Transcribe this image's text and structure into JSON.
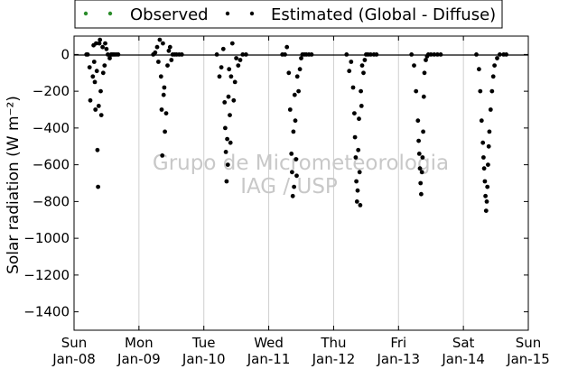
{
  "chart_data": {
    "type": "scatter",
    "ylabel": "Solar radiation (W m⁻²)",
    "ylim": [
      -1500,
      100
    ],
    "yticks": [
      0,
      -200,
      -400,
      -600,
      -800,
      -1000,
      -1200,
      -1400
    ],
    "ytick_labels": [
      "0",
      "−200",
      "−400",
      "−600",
      "−800",
      "−1000",
      "−1200",
      "−1400"
    ],
    "xlim": [
      0,
      7
    ],
    "xticks": [
      0,
      1,
      2,
      3,
      4,
      5,
      6,
      7
    ],
    "xtick_labels": [
      [
        "Sun",
        "Jan-08"
      ],
      [
        "Mon",
        "Jan-09"
      ],
      [
        "Tue",
        "Jan-10"
      ],
      [
        "Wed",
        "Jan-11"
      ],
      [
        "Thu",
        "Jan-12"
      ],
      [
        "Fri",
        "Jan-13"
      ],
      [
        "Sat",
        "Jan-14"
      ],
      [
        "Sun",
        "Jan-15"
      ]
    ],
    "grid": "vertical",
    "zero_line": true,
    "legend_position": "top",
    "watermark": [
      "Grupo de Micrometeorologia",
      "IAG / USP"
    ],
    "series": [
      {
        "name": "Observed",
        "color": "#2a8c2a",
        "x": [],
        "y": []
      },
      {
        "name": "Estimated (Global - Diffuse)",
        "color": "#000000",
        "x": [
          0.19,
          0.21,
          0.24,
          0.25,
          0.29,
          0.3,
          0.31,
          0.32,
          0.33,
          0.34,
          0.35,
          0.36,
          0.37,
          0.38,
          0.39,
          0.4,
          0.41,
          0.42,
          0.44,
          0.45,
          0.47,
          0.48,
          0.5,
          0.52,
          0.55,
          0.57,
          0.58,
          0.6,
          0.62,
          0.65,
          0.68,
          1.22,
          1.25,
          1.28,
          1.3,
          1.32,
          1.34,
          1.35,
          1.36,
          1.37,
          1.38,
          1.39,
          1.4,
          1.42,
          1.44,
          1.46,
          1.48,
          1.5,
          1.52,
          1.55,
          1.58,
          1.62,
          1.66,
          2.2,
          2.24,
          2.27,
          2.3,
          2.32,
          2.33,
          2.34,
          2.35,
          2.36,
          2.37,
          2.38,
          2.39,
          2.4,
          2.41,
          2.42,
          2.44,
          2.46,
          2.48,
          2.5,
          2.53,
          2.56,
          2.6,
          2.65,
          3.21,
          3.25,
          3.28,
          3.31,
          3.33,
          3.35,
          3.36,
          3.37,
          3.38,
          3.39,
          3.4,
          3.41,
          3.42,
          3.43,
          3.44,
          3.46,
          3.48,
          3.5,
          3.52,
          3.55,
          3.58,
          3.62,
          3.66,
          4.2,
          4.24,
          4.27,
          4.3,
          4.32,
          4.33,
          4.34,
          4.35,
          4.36,
          4.37,
          4.38,
          4.39,
          4.4,
          4.41,
          4.42,
          4.43,
          4.44,
          4.46,
          4.48,
          4.5,
          4.53,
          4.57,
          4.62,
          4.66,
          5.2,
          5.24,
          5.27,
          5.3,
          5.31,
          5.32,
          5.33,
          5.34,
          5.35,
          5.36,
          5.37,
          5.38,
          5.39,
          5.4,
          5.42,
          5.44,
          5.46,
          5.5,
          5.55,
          5.6,
          5.65,
          6.2,
          6.24,
          6.26,
          6.28,
          6.3,
          6.31,
          6.32,
          6.33,
          6.34,
          6.35,
          6.36,
          6.37,
          6.38,
          6.39,
          6.4,
          6.42,
          6.44,
          6.46,
          6.48,
          6.52,
          6.56,
          6.62,
          6.66
        ],
        "y": [
          0,
          0,
          -70,
          -250,
          -120,
          50,
          -40,
          -150,
          -300,
          60,
          -90,
          -520,
          -720,
          -280,
          60,
          80,
          -200,
          -330,
          40,
          -100,
          -60,
          60,
          30,
          0,
          -20,
          0,
          0,
          0,
          0,
          0,
          0,
          0,
          10,
          40,
          -40,
          80,
          -120,
          -300,
          -550,
          60,
          -220,
          -180,
          -420,
          -320,
          -60,
          20,
          40,
          -30,
          0,
          0,
          0,
          0,
          0,
          0,
          -120,
          -70,
          30,
          -260,
          -400,
          -530,
          -690,
          -460,
          -600,
          -230,
          -80,
          -330,
          -480,
          -120,
          60,
          -250,
          -150,
          -20,
          -60,
          -30,
          0,
          0,
          0,
          0,
          40,
          -100,
          -300,
          -540,
          -640,
          -770,
          -420,
          -720,
          -220,
          -360,
          -570,
          -660,
          -120,
          -200,
          -80,
          -20,
          0,
          0,
          0,
          0,
          0,
          0,
          -90,
          -40,
          -180,
          -320,
          -450,
          -560,
          -690,
          -800,
          -740,
          -520,
          -350,
          -640,
          -820,
          -200,
          -280,
          -60,
          -100,
          -30,
          0,
          0,
          0,
          0,
          0,
          0,
          -60,
          -200,
          -360,
          -470,
          -540,
          -620,
          -700,
          -760,
          -640,
          -560,
          -420,
          -230,
          -100,
          -30,
          -10,
          0,
          0,
          0,
          0,
          0,
          0,
          -80,
          -200,
          -360,
          -480,
          -560,
          -620,
          -690,
          -770,
          -850,
          -800,
          -720,
          -600,
          -500,
          -420,
          -300,
          -200,
          -120,
          -60,
          -20,
          0,
          0,
          0
        ]
      }
    ]
  }
}
